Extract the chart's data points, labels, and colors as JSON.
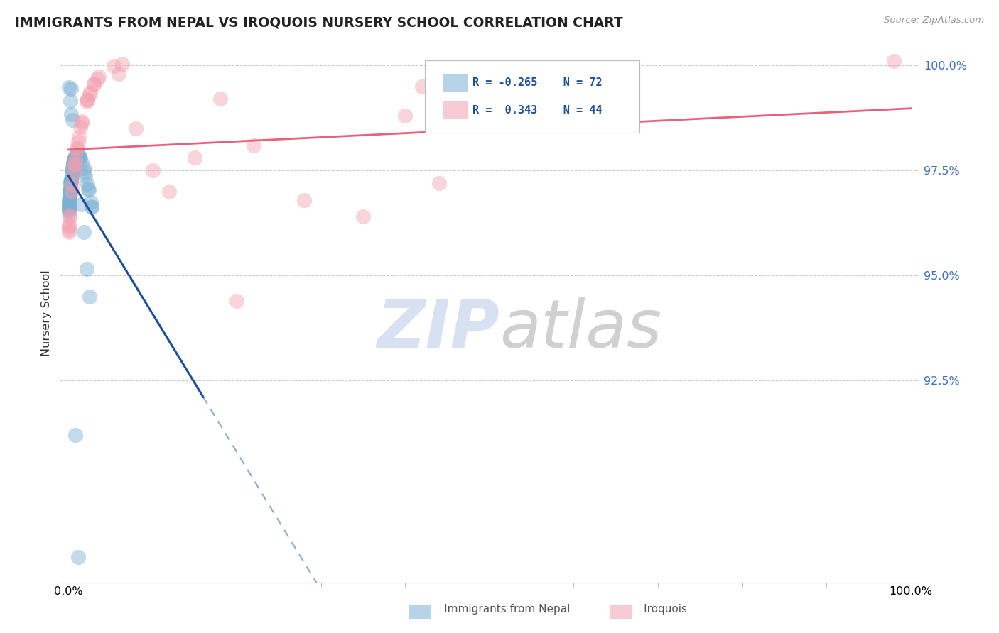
{
  "title": "IMMIGRANTS FROM NEPAL VS IROQUOIS NURSERY SCHOOL CORRELATION CHART",
  "source_text": "Source: ZipAtlas.com",
  "ylabel": "Nursery School",
  "ytick_labels": [
    "100.0%",
    "97.5%",
    "95.0%",
    "92.5%"
  ],
  "ytick_values": [
    1.0,
    0.975,
    0.95,
    0.925
  ],
  "legend_R_blue": "-0.265",
  "legend_N_blue": "72",
  "legend_R_pink": " 0.343",
  "legend_N_pink": "44",
  "blue_scatter_color": "#7BAFD4",
  "pink_scatter_color": "#F4A0B0",
  "blue_line_color": "#1B4F9C",
  "pink_line_color": "#E8607A",
  "blue_dash_color": "#8AAED4",
  "watermark_zip_color": "#D0DCF0",
  "watermark_atlas_color": "#C8C8C8",
  "xmin": 0.0,
  "xmax": 1.0,
  "ymin": 0.877,
  "ymax": 1.005,
  "nepal_seed": 77,
  "iroquois_seed": 23
}
